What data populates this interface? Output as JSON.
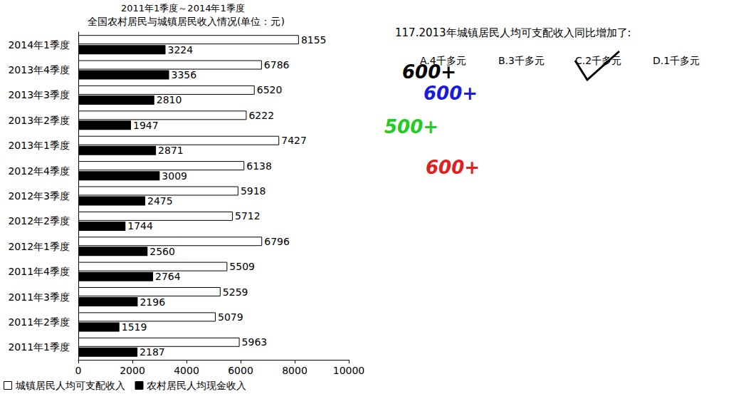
{
  "chart_data": {
    "type": "bar",
    "orientation": "horizontal",
    "subtitle": "2011年1季度～2014年1季度",
    "title": "全国农村居民与城镇居民收入情况(单位：元)",
    "categories": [
      "2014年1季度",
      "2013年4季度",
      "2013年3季度",
      "2013年2季度",
      "2013年1季度",
      "2012年4季度",
      "2012年3季度",
      "2012年2季度",
      "2012年1季度",
      "2011年4季度",
      "2011年3季度",
      "2011年2季度",
      "2011年1季度"
    ],
    "series": [
      {
        "name": "城镇居民人均可支配收入",
        "color": "#ffffff",
        "values": [
          8155,
          6786,
          6520,
          6222,
          7427,
          6138,
          5918,
          5712,
          6796,
          5509,
          5259,
          5079,
          5963
        ]
      },
      {
        "name": "农村居民人均现金收入",
        "color": "#000000",
        "values": [
          3224,
          3356,
          2810,
          1947,
          2871,
          3009,
          2475,
          1744,
          2560,
          2764,
          2196,
          1519,
          2187
        ]
      }
    ],
    "xlim": [
      0,
      10000
    ],
    "xticks": [
      0,
      2000,
      4000,
      6000,
      8000,
      10000
    ],
    "grid": false,
    "legend": "bottom-left",
    "data_labels": true,
    "annotations": [
      {
        "text": "117.2013年城镇居民人均可支配收入同比增加了:",
        "color": "#000000"
      },
      {
        "text": "A.4千多元",
        "color": "#000000"
      },
      {
        "text": "B.3千多元",
        "color": "#000000"
      },
      {
        "text": "C.2千多元",
        "color": "#000000"
      },
      {
        "text": "D.1千多元",
        "color": "#000000"
      },
      {
        "text": "600+",
        "color": "#000000"
      },
      {
        "text": "600+",
        "color": "#1a1adb"
      },
      {
        "text": "500+",
        "color": "#22cc22"
      },
      {
        "text": "600+",
        "color": "#e02020"
      }
    ]
  }
}
